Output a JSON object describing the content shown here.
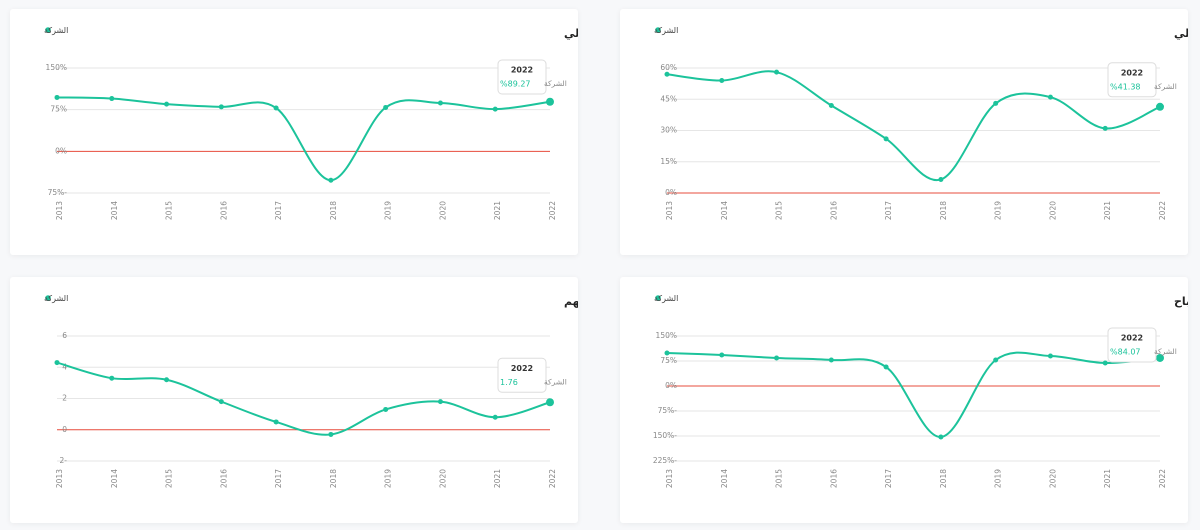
{
  "chart_data": [
    {
      "type": "line",
      "title": "هامش الربح الاجمالي",
      "categories": [
        "2013",
        "2014",
        "2015",
        "2016",
        "2017",
        "2018",
        "2019",
        "2020",
        "2021",
        "2022"
      ],
      "series": [
        {
          "name": "الشركة",
          "color": "#1cc39b",
          "values": [
            57,
            54,
            58,
            42,
            26,
            6.5,
            43,
            46,
            31,
            41.38
          ]
        }
      ],
      "ylim": [
        0,
        60
      ],
      "yticks": [
        {
          "value": 0,
          "label": "0%"
        },
        {
          "value": 15,
          "label": "15%"
        },
        {
          "value": 30,
          "label": "30%"
        },
        {
          "value": 45,
          "label": "45%"
        },
        {
          "value": 60,
          "label": "60%"
        }
      ],
      "grid": true,
      "zero_line_color": "#e74c3c",
      "tooltip": {
        "title": "2022",
        "label": "الشركة",
        "value": "%41.38"
      }
    },
    {
      "type": "line",
      "title": "هامش الربح التشغيلي",
      "categories": [
        "2013",
        "2014",
        "2015",
        "2016",
        "2017",
        "2018",
        "2019",
        "2020",
        "2021",
        "2022"
      ],
      "series": [
        {
          "name": "الشركة",
          "color": "#1cc39b",
          "values": [
            97,
            95,
            85,
            80,
            78,
            -52,
            79,
            87,
            76,
            89.27
          ]
        }
      ],
      "ylim": [
        -75,
        150
      ],
      "yticks": [
        {
          "value": -75,
          "label": "75%-"
        },
        {
          "value": 0,
          "label": "0%"
        },
        {
          "value": 75,
          "label": "75%"
        },
        {
          "value": 150,
          "label": "150%"
        }
      ],
      "grid": true,
      "zero_line_color": "#e74c3c",
      "tooltip": {
        "title": "2022",
        "label": "الشركة",
        "value": "%89.27"
      }
    },
    {
      "type": "line",
      "title": "هامش صافي الأرباح",
      "categories": [
        "2013",
        "2014",
        "2015",
        "2016",
        "2017",
        "2018",
        "2019",
        "2020",
        "2021",
        "2022"
      ],
      "series": [
        {
          "name": "الشركة",
          "color": "#1cc39b",
          "values": [
            99,
            93,
            84,
            78,
            57,
            -153,
            78,
            90,
            69,
            84.07
          ]
        }
      ],
      "ylim": [
        -225,
        150
      ],
      "yticks": [
        {
          "value": -225,
          "label": "225%-"
        },
        {
          "value": -150,
          "label": "150%-"
        },
        {
          "value": -75,
          "label": "75%-"
        },
        {
          "value": 0,
          "label": "0%"
        },
        {
          "value": 75,
          "label": "75%"
        },
        {
          "value": 150,
          "label": "150%"
        }
      ],
      "grid": true,
      "zero_line_color": "#e74c3c",
      "tooltip": {
        "title": "2022",
        "label": "الشركة",
        "value": "%84.07"
      }
    },
    {
      "type": "line",
      "title": "ربحية السهم",
      "categories": [
        "2013",
        "2014",
        "2015",
        "2016",
        "2017",
        "2018",
        "2019",
        "2020",
        "2021",
        "2022"
      ],
      "series": [
        {
          "name": "الشركة",
          "color": "#1cc39b",
          "values": [
            4.3,
            3.3,
            3.2,
            1.8,
            0.5,
            -0.3,
            1.3,
            1.8,
            0.8,
            1.76
          ]
        }
      ],
      "ylim": [
        -2,
        6
      ],
      "yticks": [
        {
          "value": -2,
          "label": "2-"
        },
        0,
        2,
        4,
        6
      ],
      "grid": true,
      "zero_line_color": "#e74c3c",
      "tooltip": {
        "title": "2022",
        "label": "الشركة",
        "value": "1.76"
      }
    }
  ]
}
